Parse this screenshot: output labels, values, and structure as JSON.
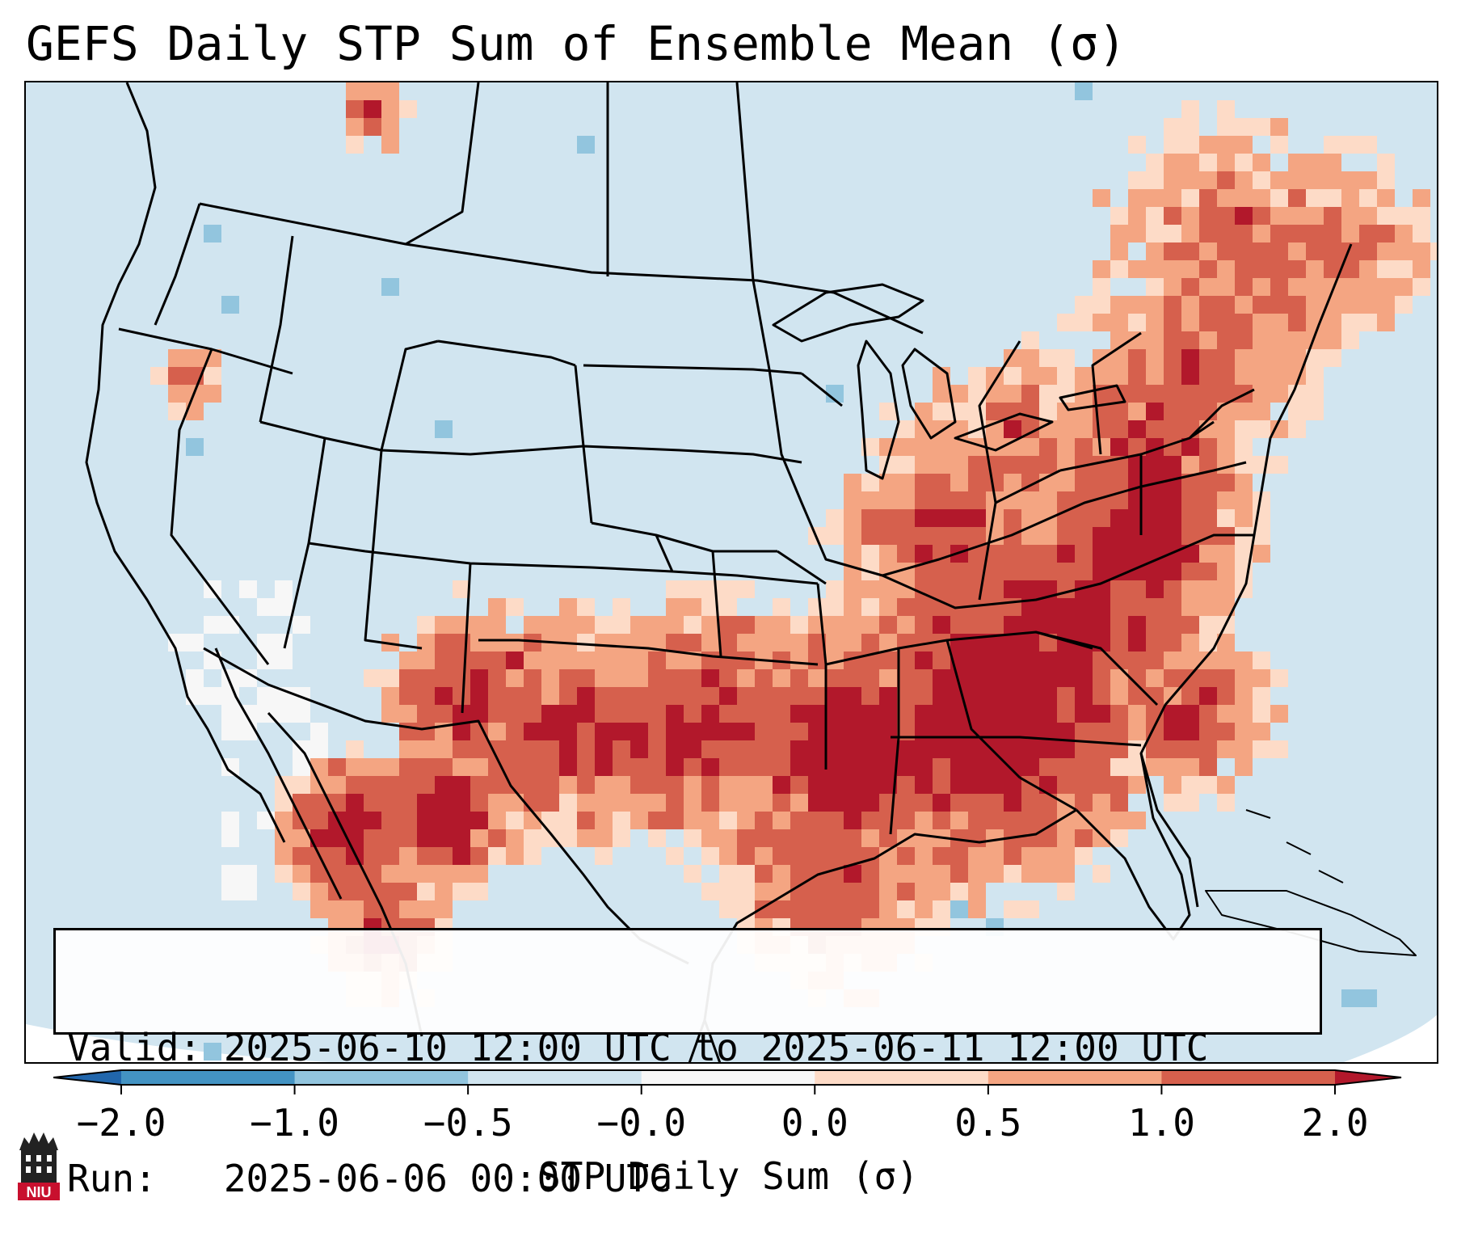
{
  "title": "GEFS Daily STP Sum of Ensemble Mean (σ)",
  "info": {
    "valid": "Valid: 2025-06-10 12:00 UTC to 2025-06-11 12:00 UTC",
    "run": "Run:   2025-06-06 00:00 UTC"
  },
  "colorbar": {
    "label": "STP Daily Sum (σ)",
    "ticks": [
      "−2.0",
      "−1.0",
      "−0.5",
      "−0.0",
      "0.0",
      "0.5",
      "1.0",
      "2.0"
    ],
    "colors": [
      "#2166ac",
      "#4393c3",
      "#92c5de",
      "#d1e5f0",
      "#f7f7f7",
      "#fddbc7",
      "#f4a582",
      "#d6604d",
      "#b2182b"
    ],
    "extend": "both"
  },
  "map": {
    "region": "Contiguous United States and northern Mexico",
    "ocean_color": "#d1e5f0",
    "highlight": "Highest values across the Southeast and Gulf Coast states"
  },
  "logo": {
    "text": "NIU"
  }
}
